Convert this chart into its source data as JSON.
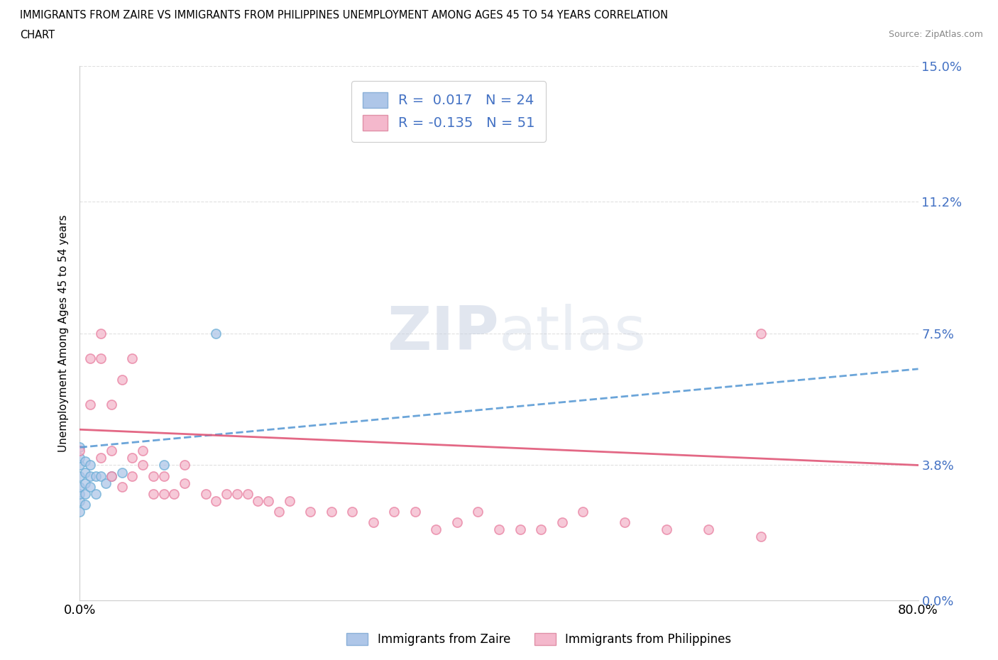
{
  "title_line1": "IMMIGRANTS FROM ZAIRE VS IMMIGRANTS FROM PHILIPPINES UNEMPLOYMENT AMONG AGES 45 TO 54 YEARS CORRELATION",
  "title_line2": "CHART",
  "source": "Source: ZipAtlas.com",
  "ylabel": "Unemployment Among Ages 45 to 54 years",
  "xlim": [
    0.0,
    0.8
  ],
  "ylim": [
    0.0,
    0.15
  ],
  "yticks": [
    0.0,
    0.038,
    0.075,
    0.112,
    0.15
  ],
  "ytick_labels": [
    "0.0%",
    "3.8%",
    "7.5%",
    "11.2%",
    "15.0%"
  ],
  "xtick_labels": [
    "0.0%",
    "80.0%"
  ],
  "legend_label1": "Immigrants from Zaire",
  "legend_label2": "Immigrants from Philippines",
  "zaire_color": "#6baed6",
  "zaire_face_color": "#aec6e8",
  "philippines_edge_color": "#e87fa0",
  "philippines_face_color": "#f4b8cc",
  "zaire_line_color": "#5b9bd5",
  "philippines_line_color": "#e05878",
  "legend_box_color1": "#aec6e8",
  "legend_box_color2": "#f4b8cc",
  "label_color": "#4472c4",
  "watermark_color": "#d0d8e8",
  "background_color": "#ffffff",
  "grid_color": "#e0e0e0",
  "zaire_x": [
    0.0,
    0.0,
    0.0,
    0.0,
    0.0,
    0.0,
    0.0,
    0.0,
    0.005,
    0.005,
    0.005,
    0.005,
    0.005,
    0.01,
    0.01,
    0.01,
    0.015,
    0.015,
    0.02,
    0.025,
    0.03,
    0.04,
    0.08,
    0.13
  ],
  "zaire_y": [
    0.025,
    0.028,
    0.03,
    0.032,
    0.035,
    0.038,
    0.04,
    0.043,
    0.027,
    0.03,
    0.033,
    0.036,
    0.039,
    0.032,
    0.035,
    0.038,
    0.03,
    0.035,
    0.035,
    0.033,
    0.035,
    0.036,
    0.038,
    0.075
  ],
  "philippines_x": [
    0.0,
    0.01,
    0.01,
    0.02,
    0.02,
    0.02,
    0.03,
    0.03,
    0.03,
    0.04,
    0.04,
    0.05,
    0.05,
    0.05,
    0.06,
    0.06,
    0.07,
    0.07,
    0.08,
    0.08,
    0.09,
    0.1,
    0.1,
    0.12,
    0.13,
    0.14,
    0.15,
    0.16,
    0.17,
    0.18,
    0.19,
    0.2,
    0.22,
    0.24,
    0.26,
    0.28,
    0.3,
    0.32,
    0.34,
    0.36,
    0.38,
    0.4,
    0.42,
    0.44,
    0.46,
    0.48,
    0.52,
    0.56,
    0.6,
    0.65,
    0.65
  ],
  "philippines_y": [
    0.042,
    0.055,
    0.068,
    0.04,
    0.068,
    0.075,
    0.035,
    0.042,
    0.055,
    0.032,
    0.062,
    0.035,
    0.04,
    0.068,
    0.038,
    0.042,
    0.03,
    0.035,
    0.03,
    0.035,
    0.03,
    0.033,
    0.038,
    0.03,
    0.028,
    0.03,
    0.03,
    0.03,
    0.028,
    0.028,
    0.025,
    0.028,
    0.025,
    0.025,
    0.025,
    0.022,
    0.025,
    0.025,
    0.02,
    0.022,
    0.025,
    0.02,
    0.02,
    0.02,
    0.022,
    0.025,
    0.022,
    0.02,
    0.02,
    0.018,
    0.075
  ]
}
